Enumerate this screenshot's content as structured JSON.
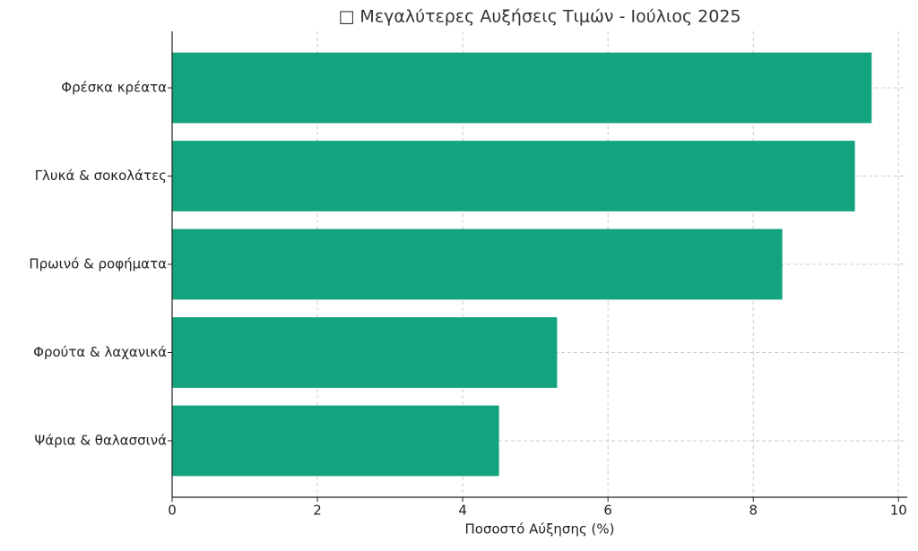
{
  "chart_data": {
    "type": "barh",
    "title": "□ Μεγαλύτερες Αυξήσεις Τιμών - Ιούλιος 2025",
    "x_label": "Ποσοστό Αύξησης (%)",
    "categories": [
      "Φρέσκα κρέατα",
      "Γλυκά & σοκολάτες",
      "Πρωινό & ροφήματα",
      "Φρούτα & λαχανικά",
      "Ψάρια & θαλασσινά"
    ],
    "values": [
      9.63,
      9.4,
      8.4,
      5.3,
      4.5
    ],
    "color": "#13a37f",
    "xlim": [
      0,
      10.12
    ],
    "xticks": [
      0,
      2,
      4,
      6,
      8,
      10
    ],
    "grid": true
  }
}
